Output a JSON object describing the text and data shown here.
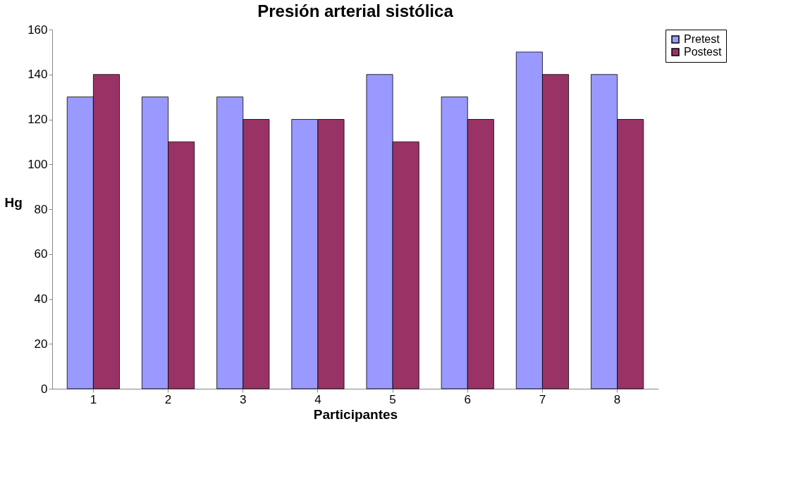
{
  "chart_data": {
    "type": "bar",
    "title": "Presión arterial sistólica",
    "xlabel": "Participantes",
    "ylabel": "Hg",
    "categories": [
      "1",
      "2",
      "3",
      "4",
      "5",
      "6",
      "7",
      "8"
    ],
    "series": [
      {
        "name": "Pretest",
        "color": "#9999ff",
        "values": [
          130,
          130,
          130,
          120,
          140,
          130,
          150,
          140
        ]
      },
      {
        "name": "Postest",
        "color": "#993366",
        "values": [
          140,
          110,
          120,
          120,
          110,
          120,
          140,
          120
        ]
      }
    ],
    "ylim": [
      0,
      160
    ],
    "yticks": [
      0,
      20,
      40,
      60,
      80,
      100,
      120,
      140,
      160
    ],
    "grid": false,
    "legend": "top right"
  }
}
